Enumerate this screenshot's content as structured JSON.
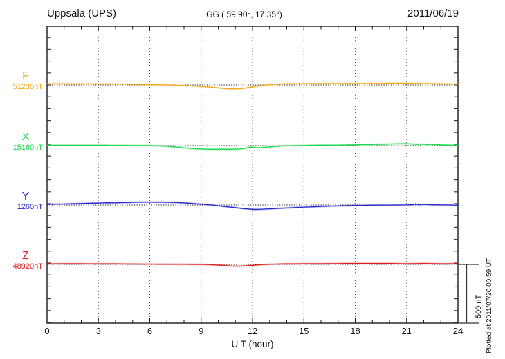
{
  "header": {
    "station": "Uppsala (UPS)",
    "coords": "GG ( 59.90°,  17.35°)",
    "date": "2011/06/19"
  },
  "axis": {
    "x_label": "U T (hour)",
    "x_ticks": [
      0,
      3,
      6,
      9,
      12,
      15,
      18,
      21,
      24
    ],
    "x_range": [
      0,
      24
    ],
    "major_hours": [
      3,
      6,
      9,
      12,
      15,
      18,
      21
    ],
    "y_tick_step_nT": 100
  },
  "scale_bar": {
    "label": "500 nT",
    "nT": 500
  },
  "footer_note": "Plotted at 2011/07/20 00:59 UT",
  "chart_data": {
    "type": "line",
    "title": "Uppsala (UPS) magnetogram",
    "date": "2011/06/19",
    "xlabel": "U T (hour)",
    "x_range": [
      0,
      24
    ],
    "grid": "dotted vertical gridlines every 3 h; dotted horizontal baseline per component",
    "amplitude_scale": "500 nT reference bar at right",
    "points_unit": "[hour UT, nT offset from component baseline]",
    "series": [
      {
        "name": "F",
        "baseline_value": "51230nT",
        "color": "#f0a818",
        "points": [
          [
            0,
            10
          ],
          [
            0.5,
            10
          ],
          [
            1,
            10
          ],
          [
            1.5,
            9
          ],
          [
            2,
            10
          ],
          [
            2.5,
            9
          ],
          [
            3,
            9
          ],
          [
            3.5,
            9
          ],
          [
            4,
            8
          ],
          [
            4.5,
            7
          ],
          [
            5,
            6
          ],
          [
            5.5,
            4
          ],
          [
            6,
            3
          ],
          [
            6.5,
            2
          ],
          [
            7,
            0
          ],
          [
            7.5,
            -3
          ],
          [
            8,
            -6
          ],
          [
            8.5,
            -9
          ],
          [
            9,
            -13
          ],
          [
            9.5,
            -18
          ],
          [
            10,
            -26
          ],
          [
            10.4,
            -32
          ],
          [
            10.8,
            -35
          ],
          [
            11.2,
            -33
          ],
          [
            11.6,
            -27
          ],
          [
            12,
            -17
          ],
          [
            12.4,
            -7
          ],
          [
            12.8,
            0
          ],
          [
            13.2,
            5
          ],
          [
            13.6,
            8
          ],
          [
            14,
            10
          ],
          [
            14.5,
            10
          ],
          [
            15,
            11
          ],
          [
            15.5,
            11
          ],
          [
            16,
            11
          ],
          [
            16.5,
            12
          ],
          [
            17,
            12
          ],
          [
            17.5,
            12
          ],
          [
            18,
            12
          ],
          [
            18.5,
            12
          ],
          [
            19,
            13
          ],
          [
            19.5,
            13
          ],
          [
            20,
            14
          ],
          [
            20.5,
            15
          ],
          [
            21,
            14
          ],
          [
            21.5,
            13
          ],
          [
            22,
            12
          ],
          [
            22.5,
            11
          ],
          [
            23,
            10
          ],
          [
            23.5,
            8
          ],
          [
            24,
            7
          ]
        ]
      },
      {
        "name": "X",
        "baseline_value": "15160nT",
        "color": "#16d94c",
        "points": [
          [
            0,
            3
          ],
          [
            0.5,
            3
          ],
          [
            1,
            3
          ],
          [
            1.5,
            3
          ],
          [
            2,
            3
          ],
          [
            2.5,
            3
          ],
          [
            3,
            3
          ],
          [
            3.5,
            3
          ],
          [
            4,
            2
          ],
          [
            4.5,
            2
          ],
          [
            5,
            1
          ],
          [
            5.5,
            1
          ],
          [
            6,
            0
          ],
          [
            6.5,
            -2
          ],
          [
            7,
            -6
          ],
          [
            7.5,
            -12
          ],
          [
            8,
            -19
          ],
          [
            8.5,
            -25
          ],
          [
            9,
            -29
          ],
          [
            9.5,
            -31
          ],
          [
            10,
            -32
          ],
          [
            10.3,
            -30
          ],
          [
            10.6,
            -32
          ],
          [
            11,
            -30
          ],
          [
            11.3,
            -28
          ],
          [
            11.6,
            -22
          ],
          [
            11.9,
            -12
          ],
          [
            12.1,
            -16
          ],
          [
            12.4,
            -19
          ],
          [
            12.8,
            -14
          ],
          [
            13.2,
            -8
          ],
          [
            13.6,
            -4
          ],
          [
            14,
            -1
          ],
          [
            14.5,
            0
          ],
          [
            15,
            1
          ],
          [
            15.5,
            3
          ],
          [
            16,
            4
          ],
          [
            16.5,
            4
          ],
          [
            17,
            5
          ],
          [
            17.5,
            6
          ],
          [
            18,
            7
          ],
          [
            18.5,
            9
          ],
          [
            19,
            10
          ],
          [
            19.5,
            12
          ],
          [
            20,
            14
          ],
          [
            20.5,
            16
          ],
          [
            21,
            17
          ],
          [
            21.3,
            14
          ],
          [
            21.6,
            11
          ],
          [
            21.9,
            13
          ],
          [
            22.2,
            9
          ],
          [
            22.5,
            11
          ],
          [
            22.8,
            8
          ],
          [
            23.1,
            6
          ],
          [
            23.5,
            5
          ],
          [
            24,
            3
          ]
        ]
      },
      {
        "name": "Y",
        "baseline_value": "1260nT",
        "color": "#2424cc",
        "points": [
          [
            0,
            6
          ],
          [
            0.5,
            8
          ],
          [
            1,
            9
          ],
          [
            1.5,
            11
          ],
          [
            2,
            13
          ],
          [
            2.5,
            15
          ],
          [
            3,
            17
          ],
          [
            3.3,
            19
          ],
          [
            3.6,
            20
          ],
          [
            4,
            19
          ],
          [
            4.4,
            21
          ],
          [
            4.8,
            22
          ],
          [
            5.2,
            24
          ],
          [
            5.6,
            25
          ],
          [
            6,
            25
          ],
          [
            6.4,
            24
          ],
          [
            6.8,
            24
          ],
          [
            7.2,
            23
          ],
          [
            7.6,
            21
          ],
          [
            8,
            18
          ],
          [
            8.4,
            14
          ],
          [
            8.8,
            10
          ],
          [
            9.2,
            5
          ],
          [
            9.6,
            0
          ],
          [
            10,
            -7
          ],
          [
            10.5,
            -15
          ],
          [
            11,
            -23
          ],
          [
            11.4,
            -30
          ],
          [
            11.8,
            -35
          ],
          [
            12.1,
            -38
          ],
          [
            12.4,
            -37
          ],
          [
            12.8,
            -34
          ],
          [
            13.2,
            -32
          ],
          [
            13.6,
            -29
          ],
          [
            14,
            -26
          ],
          [
            14.5,
            -22
          ],
          [
            15,
            -19
          ],
          [
            15.5,
            -16
          ],
          [
            16,
            -13
          ],
          [
            16.5,
            -10
          ],
          [
            17,
            -8
          ],
          [
            17.5,
            -6
          ],
          [
            18,
            -4
          ],
          [
            18.5,
            -3
          ],
          [
            19,
            -2
          ],
          [
            19.5,
            -1
          ],
          [
            20,
            -1
          ],
          [
            20.5,
            0
          ],
          [
            21,
            1
          ],
          [
            21.3,
            3
          ],
          [
            21.5,
            8
          ],
          [
            21.7,
            4
          ],
          [
            22,
            6
          ],
          [
            22.3,
            3
          ],
          [
            22.7,
            2
          ],
          [
            23,
            1
          ],
          [
            23.5,
            0
          ],
          [
            24,
            -2
          ]
        ]
      },
      {
        "name": "Z",
        "baseline_value": "48920nT",
        "color": "#dd1c1c",
        "points": [
          [
            0,
            5
          ],
          [
            0.5,
            5
          ],
          [
            1,
            6
          ],
          [
            1.5,
            6
          ],
          [
            2,
            6
          ],
          [
            2.5,
            5
          ],
          [
            3,
            5
          ],
          [
            3.5,
            5
          ],
          [
            4,
            5
          ],
          [
            4.5,
            4
          ],
          [
            5,
            4
          ],
          [
            5.5,
            3
          ],
          [
            6,
            3
          ],
          [
            6.5,
            2
          ],
          [
            7,
            2
          ],
          [
            7.5,
            1
          ],
          [
            8,
            1
          ],
          [
            8.5,
            0
          ],
          [
            9,
            0
          ],
          [
            9.5,
            -2
          ],
          [
            10,
            -6
          ],
          [
            10.4,
            -10
          ],
          [
            10.8,
            -14
          ],
          [
            11.2,
            -15
          ],
          [
            11.6,
            -12
          ],
          [
            12,
            -8
          ],
          [
            12.4,
            -3
          ],
          [
            12.8,
            0
          ],
          [
            13.2,
            2
          ],
          [
            13.6,
            4
          ],
          [
            14,
            5
          ],
          [
            14.5,
            5
          ],
          [
            15,
            6
          ],
          [
            15.5,
            6
          ],
          [
            16,
            6
          ],
          [
            16.5,
            7
          ],
          [
            17,
            7
          ],
          [
            17.5,
            8
          ],
          [
            18,
            8
          ],
          [
            18.5,
            8
          ],
          [
            19,
            8
          ],
          [
            19.5,
            8
          ],
          [
            20,
            8
          ],
          [
            20.5,
            7
          ],
          [
            21,
            6
          ],
          [
            21.5,
            7
          ],
          [
            22,
            8
          ],
          [
            22.5,
            7
          ],
          [
            23,
            6
          ],
          [
            23.5,
            6
          ],
          [
            24,
            6
          ]
        ]
      }
    ]
  }
}
